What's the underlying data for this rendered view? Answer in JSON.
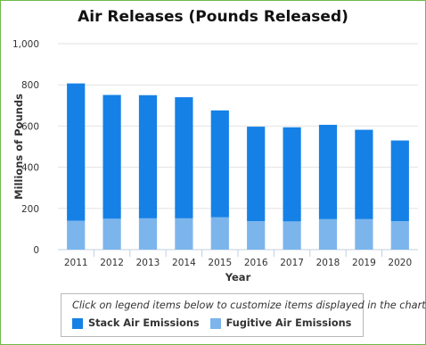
{
  "chart_data": {
    "type": "bar",
    "stacked": true,
    "title": "Air Releases (Pounds Released)",
    "xlabel": "Year",
    "ylabel": "Millions of Pounds",
    "ylim": [
      0,
      1000
    ],
    "yticks": [
      "0",
      "200",
      "400",
      "600",
      "800",
      "1,000"
    ],
    "grid": true,
    "legend_position": "bottom",
    "categories": [
      "2011",
      "2012",
      "2013",
      "2014",
      "2015",
      "2016",
      "2017",
      "2018",
      "2019",
      "2020"
    ],
    "series": [
      {
        "name": "Fugitive Air Emissions",
        "color": "#7cb5ec",
        "values": [
          140,
          150,
          152,
          152,
          157,
          138,
          137,
          148,
          148,
          138
        ]
      },
      {
        "name": "Stack Air Emissions",
        "color": "#1581e6",
        "values": [
          667,
          601,
          598,
          588,
          519,
          459,
          457,
          458,
          434,
          392
        ]
      }
    ]
  },
  "legend": {
    "hint": "Click on legend items below to customize items displayed in the chart",
    "items": [
      {
        "label": "Stack Air Emissions",
        "color": "#1581e6"
      },
      {
        "label": "Fugitive Air Emissions",
        "color": "#7cb5ec"
      }
    ]
  }
}
